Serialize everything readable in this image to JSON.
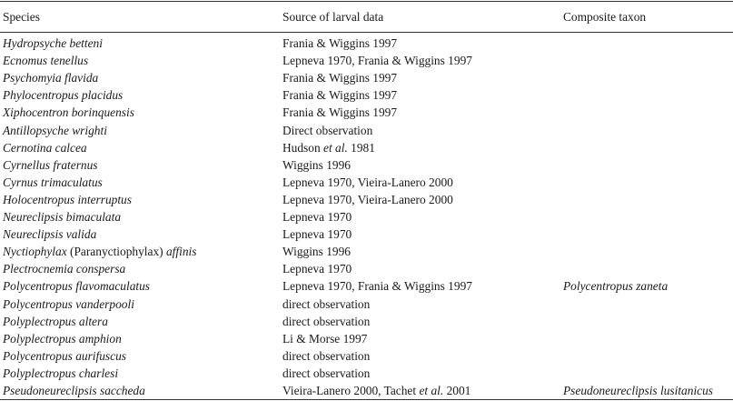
{
  "headers": {
    "species": "Species",
    "source": "Source of larval data",
    "composite": "Composite taxon"
  },
  "rows": [
    {
      "species": "Hydropsyche betteni",
      "source": "Frania & Wiggins 1997",
      "composite": ""
    },
    {
      "species": "Ecnomus tenellus",
      "source": "Lepneva 1970, Frania & Wiggins 1997",
      "composite": ""
    },
    {
      "species": "Psychomyia flavida",
      "source": "Frania & Wiggins 1997",
      "composite": ""
    },
    {
      "species": "Phylocentropus placidus",
      "source": "Frania & Wiggins 1997",
      "composite": ""
    },
    {
      "species": "Xiphocentron borinquensis",
      "source": "Frania & Wiggins 1997",
      "composite": ""
    },
    {
      "species": "Antillopsyche wrighti",
      "source": "Direct observation",
      "composite": ""
    },
    {
      "species": "Cernotina calcea",
      "source_pre": "Hudson ",
      "source_em": "et al.",
      "source_post": " 1981",
      "composite": ""
    },
    {
      "species": "Cyrnellus fraternus",
      "source": "Wiggins 1996",
      "composite": ""
    },
    {
      "species": "Cyrnus trimaculatus",
      "source": "Lepneva 1970, Vieira-Lanero 2000",
      "composite": ""
    },
    {
      "species": "Holocentropus interruptus",
      "source": "Lepneva 1970, Vieira-Lanero 2000",
      "composite": ""
    },
    {
      "species": "Neureclipsis bimaculata",
      "source": "Lepneva 1970",
      "composite": ""
    },
    {
      "species": "Neureclipsis valida",
      "source": "Lepneva 1970",
      "composite": ""
    },
    {
      "species_pre": "Nyctiophylax ",
      "species_paren": "(Paranyctiophylax)",
      "species_post": " affinis",
      "source": "Wiggins 1996",
      "composite": ""
    },
    {
      "species": "Plectrocnemia conspersa",
      "source": "Lepneva 1970",
      "composite": ""
    },
    {
      "species": "Polycentropus flavomaculatus",
      "source": "Lepneva 1970, Frania & Wiggins 1997",
      "composite": "Polycentropus zaneta"
    },
    {
      "species": "Polycentropus vanderpooli",
      "source": "direct observation",
      "composite": ""
    },
    {
      "species": "Polyplectropus altera",
      "source": "direct observation",
      "composite": ""
    },
    {
      "species": "Polyplectropus amphion",
      "source": "Li & Morse 1997",
      "composite": ""
    },
    {
      "species": "Polycentropus aurifuscus",
      "source": "direct observation",
      "composite": ""
    },
    {
      "species": "Polyplectropus charlesi",
      "source": "direct observation",
      "composite": ""
    },
    {
      "species": "Pseudoneureclipsis saccheda",
      "source_pre": "Vieira-Lanero 2000, Tachet ",
      "source_em": "et al.",
      "source_post": " 2001",
      "composite": "Pseudoneureclipsis lusitanicus"
    }
  ]
}
